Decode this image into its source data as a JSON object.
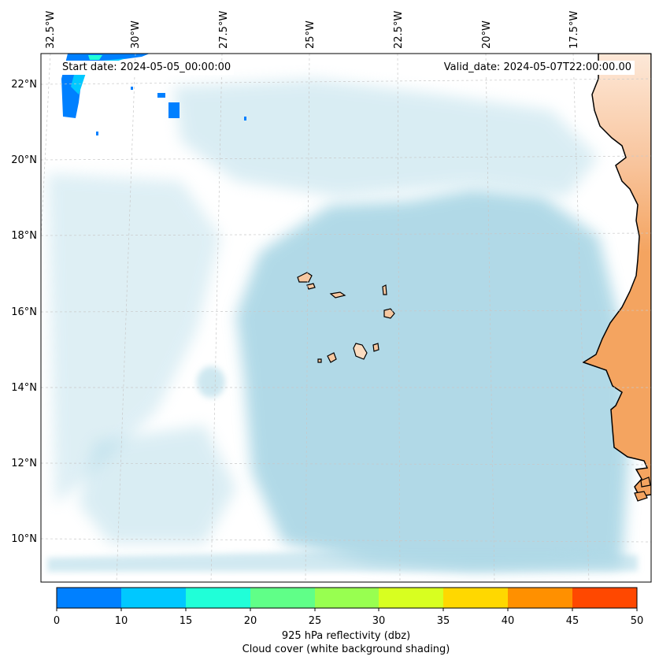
{
  "map": {
    "start_date_label": "Start date: 2024-05-05_00:00:00",
    "valid_date_label": "Valid_date: 2024-05-07T22:00:00.00",
    "lon_labels": [
      "32.5°W",
      "30°W",
      "27.5°W",
      "25°W",
      "22.5°W",
      "20°W",
      "17.5°W"
    ],
    "lat_labels": [
      "22°N",
      "20°N",
      "18°N",
      "16°N",
      "14°N",
      "12°N",
      "10°N"
    ],
    "colors": {
      "ocean_cloud": "#add8e6",
      "land": "#f4a460",
      "land_light": "#fde8d8",
      "coast": "#000000",
      "grid": "#c8c8c8"
    }
  },
  "colorbar": {
    "ticks": [
      "0",
      "10",
      "15",
      "20",
      "25",
      "30",
      "35",
      "40",
      "45",
      "50"
    ],
    "colors": [
      "#0080ff",
      "#00c8ff",
      "#20ffd8",
      "#60ff88",
      "#98ff50",
      "#d8ff20",
      "#ffd800",
      "#ff9000",
      "#ff4800"
    ],
    "label_line1": "925 hPa reflectivity (dbz)",
    "label_line2": "Cloud cover (white background shading)"
  }
}
